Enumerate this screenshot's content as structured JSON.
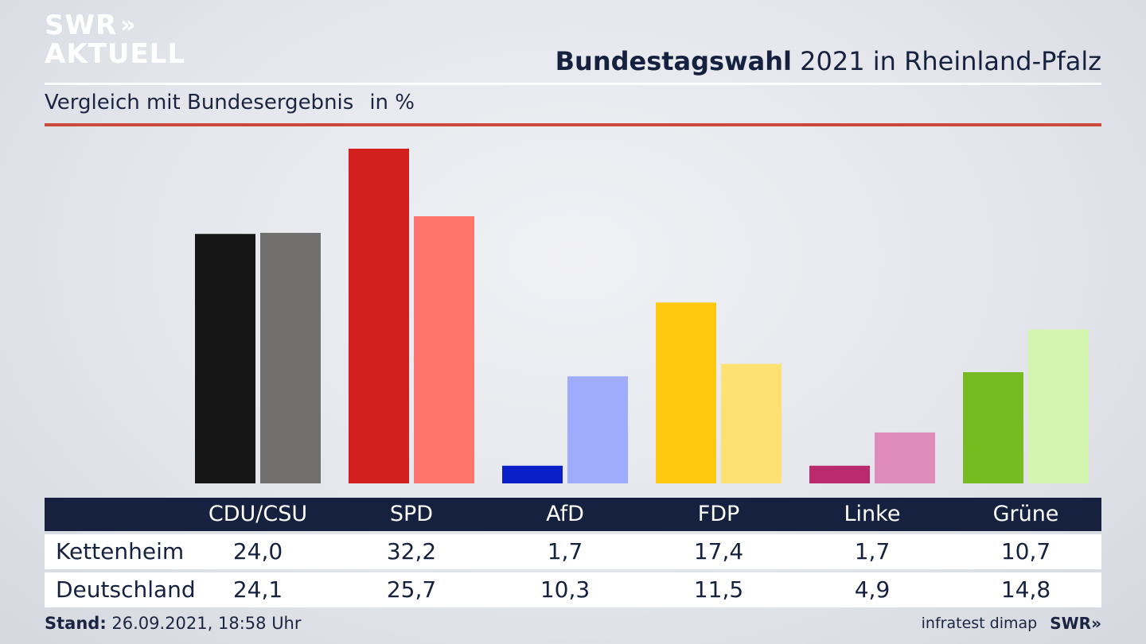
{
  "brand": {
    "line1": "SWR",
    "line2": "AKTUELL",
    "chevrons": "»"
  },
  "header": {
    "title_bold": "Bundestagswahl",
    "title_rest": "2021 in Rheinland-Pfalz",
    "subtitle": "Vergleich mit Bundesergebnis",
    "unit": "in %"
  },
  "chart_data": {
    "type": "bar",
    "title": "Bundestagswahl 2021 in Rheinland-Pfalz",
    "subtitle": "Vergleich mit Bundesergebnis",
    "unit": "in %",
    "categories": [
      "CDU/CSU",
      "SPD",
      "AfD",
      "FDP",
      "Linke",
      "Grüne"
    ],
    "series": [
      {
        "name": "Kettenheim",
        "values": [
          24.0,
          32.2,
          1.7,
          17.4,
          1.7,
          10.7
        ],
        "colors": [
          "#161616",
          "#d41f1f",
          "#0a1fc8",
          "#fdc80e",
          "#b92b6d",
          "#76bb21"
        ]
      },
      {
        "name": "Deutschland",
        "values": [
          24.1,
          25.7,
          10.3,
          11.5,
          4.9,
          14.8
        ],
        "colors": [
          "#706f6d",
          "#ff746c",
          "#9fabfd",
          "#fde172",
          "#e08cba",
          "#d4f5ad"
        ]
      }
    ],
    "ylim": [
      0,
      32.2
    ],
    "grid": false,
    "legend": "table-below"
  },
  "table": {
    "rows": [
      {
        "label": "Kettenheim",
        "values": [
          "24,0",
          "32,2",
          "1,7",
          "17,4",
          "1,7",
          "10,7"
        ]
      },
      {
        "label": "Deutschland",
        "values": [
          "24,1",
          "25,7",
          "10,3",
          "11,5",
          "4,9",
          "14,8"
        ]
      }
    ]
  },
  "footer": {
    "stand_label": "Stand:",
    "stand_value": "26.09.2021, 18:58 Uhr",
    "source": "infratest dimap",
    "brand": "SWR»"
  }
}
